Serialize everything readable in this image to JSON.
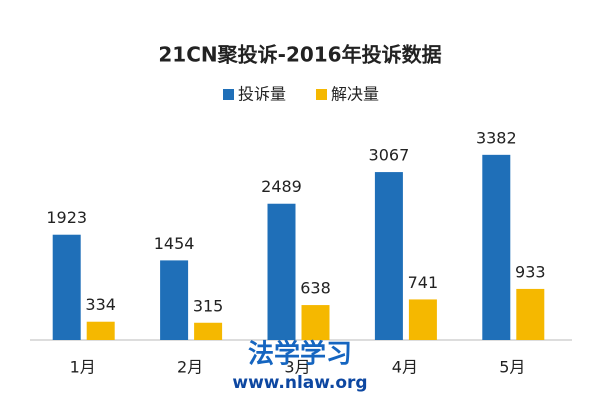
{
  "chart_data": {
    "type": "bar",
    "title": "21CN聚投诉-2016年投诉数据",
    "categories": [
      "1月",
      "2月",
      "3月",
      "4月",
      "5月"
    ],
    "series": [
      {
        "name": "投诉量",
        "color": "#1f6fb8",
        "values": [
          1923,
          1454,
          2489,
          3067,
          3382
        ]
      },
      {
        "name": "解决量",
        "color": "#f5b800",
        "values": [
          334,
          315,
          638,
          741,
          933
        ]
      }
    ],
    "ylim": [
      0,
      4000
    ],
    "grid": false,
    "legend": "top"
  },
  "watermark": {
    "text": "法学学习",
    "url": "www.nlaw.org"
  }
}
